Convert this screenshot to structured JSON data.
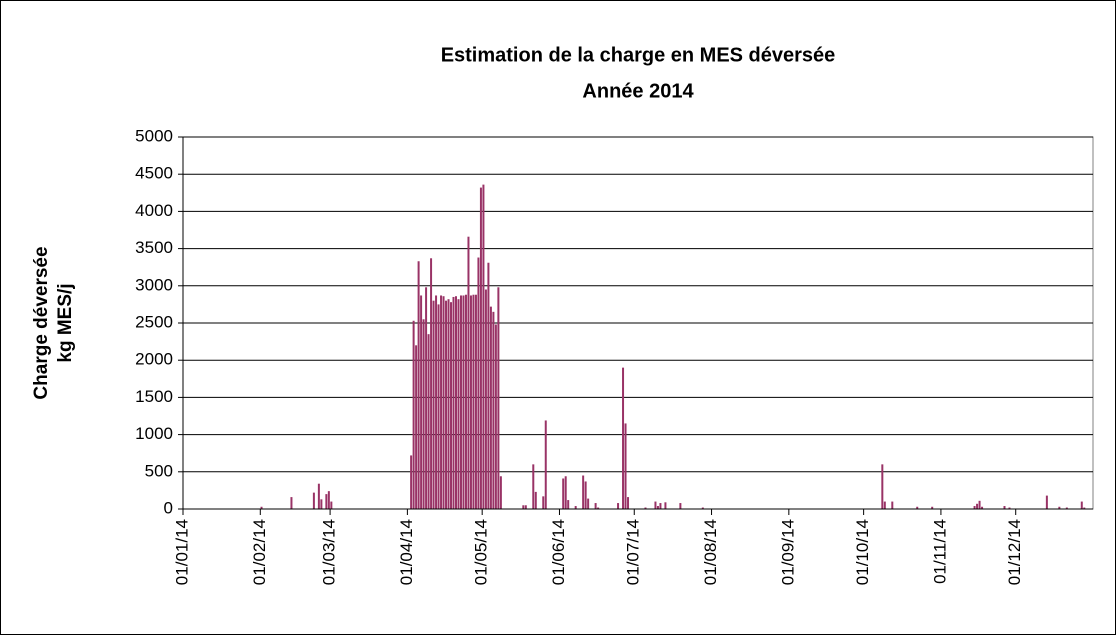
{
  "chart_data": {
    "type": "bar",
    "title": "Estimation de la charge en MES déversée",
    "subtitle": "Année 2014",
    "ylabel": [
      "Charge déversée",
      "kg MES/j"
    ],
    "color": "#993366",
    "ylim": [
      0,
      5000
    ],
    "yticks": [
      0,
      500,
      1000,
      1500,
      2000,
      2500,
      3000,
      3500,
      4000,
      4500,
      5000
    ],
    "grid": true,
    "categories": [
      "01/01/14",
      null,
      null,
      null,
      null,
      null,
      null,
      null,
      null,
      null,
      null,
      null,
      null,
      null,
      null,
      null,
      null,
      null,
      null,
      null,
      null,
      null,
      null,
      null,
      null,
      null,
      null,
      null,
      null,
      null,
      null,
      "01/02/14",
      null,
      null,
      null,
      null,
      null,
      null,
      null,
      null,
      null,
      null,
      null,
      null,
      null,
      null,
      null,
      null,
      null,
      null,
      null,
      null,
      null,
      null,
      null,
      null,
      null,
      null,
      null,
      "01/03/14",
      null,
      null,
      null,
      null,
      null,
      null,
      null,
      null,
      null,
      null,
      null,
      null,
      null,
      null,
      null,
      null,
      null,
      null,
      null,
      null,
      null,
      null,
      null,
      null,
      null,
      null,
      null,
      null,
      null,
      null,
      "01/04/14",
      null,
      null,
      null,
      null,
      null,
      null,
      null,
      null,
      null,
      null,
      null,
      null,
      null,
      null,
      null,
      null,
      null,
      null,
      null,
      null,
      null,
      null,
      null,
      null,
      null,
      null,
      null,
      null,
      null,
      "01/05/14",
      null,
      null,
      null,
      null,
      null,
      null,
      null,
      null,
      null,
      null,
      null,
      null,
      null,
      null,
      null,
      null,
      null,
      null,
      null,
      null,
      null,
      null,
      null,
      null,
      null,
      null,
      null,
      null,
      null,
      null,
      "01/06/14",
      null,
      null,
      null,
      null,
      null,
      null,
      null,
      null,
      null,
      null,
      null,
      null,
      null,
      null,
      null,
      null,
      null,
      null,
      null,
      null,
      null,
      null,
      null,
      null,
      null,
      null,
      null,
      null,
      null,
      "01/07/14",
      null,
      null,
      null,
      null,
      null,
      null,
      null,
      null,
      null,
      null,
      null,
      null,
      null,
      null,
      null,
      null,
      null,
      null,
      null,
      null,
      null,
      null,
      null,
      null,
      null,
      null,
      null,
      null,
      null,
      null,
      "01/08/14",
      null,
      null,
      null,
      null,
      null,
      null,
      null,
      null,
      null,
      null,
      null,
      null,
      null,
      null,
      null,
      null,
      null,
      null,
      null,
      null,
      null,
      null,
      null,
      null,
      null,
      null,
      null,
      null,
      null,
      null,
      "01/09/14",
      null,
      null,
      null,
      null,
      null,
      null,
      null,
      null,
      null,
      null,
      null,
      null,
      null,
      null,
      null,
      null,
      null,
      null,
      null,
      null,
      null,
      null,
      null,
      null,
      null,
      null,
      null,
      null,
      null,
      "01/10/14",
      null,
      null,
      null,
      null,
      null,
      null,
      null,
      null,
      null,
      null,
      null,
      null,
      null,
      null,
      null,
      null,
      null,
      null,
      null,
      null,
      null,
      null,
      null,
      null,
      null,
      null,
      null,
      null,
      null,
      null,
      "01/11/14",
      null,
      null,
      null,
      null,
      null,
      null,
      null,
      null,
      null,
      null,
      null,
      null,
      null,
      null,
      null,
      null,
      null,
      null,
      null,
      null,
      null,
      null,
      null,
      null,
      null,
      null,
      null,
      null,
      null,
      "01/12/14",
      null,
      null,
      null,
      null,
      null,
      null,
      null,
      null,
      null,
      null,
      null,
      null,
      null,
      null,
      null,
      null,
      null,
      null,
      null,
      null,
      null,
      null,
      null,
      null,
      null,
      null,
      null,
      null,
      null,
      null
    ],
    "values": [
      0,
      0,
      0,
      0,
      0,
      0,
      0,
      0,
      0,
      0,
      0,
      0,
      0,
      0,
      0,
      0,
      0,
      0,
      0,
      0,
      0,
      0,
      0,
      0,
      0,
      0,
      0,
      0,
      0,
      0,
      0,
      30,
      0,
      0,
      0,
      0,
      0,
      0,
      0,
      0,
      0,
      0,
      0,
      160,
      0,
      0,
      0,
      0,
      0,
      0,
      0,
      0,
      220,
      0,
      340,
      130,
      0,
      200,
      240,
      100,
      0,
      0,
      0,
      0,
      0,
      0,
      0,
      0,
      0,
      0,
      0,
      0,
      0,
      0,
      0,
      0,
      0,
      0,
      0,
      0,
      0,
      0,
      0,
      0,
      0,
      0,
      0,
      0,
      0,
      0,
      0,
      720,
      2530,
      2200,
      3330,
      2870,
      2550,
      2980,
      2350,
      3370,
      2800,
      2870,
      2750,
      2870,
      2860,
      2800,
      2820,
      2780,
      2850,
      2860,
      2820,
      2870,
      2870,
      2880,
      3660,
      2870,
      2880,
      2880,
      3380,
      4320,
      4360,
      2950,
      3310,
      2720,
      2650,
      2480,
      2980,
      440,
      0,
      0,
      0,
      0,
      0,
      0,
      0,
      0,
      50,
      50,
      0,
      0,
      600,
      230,
      0,
      0,
      170,
      1190,
      0,
      0,
      0,
      0,
      0,
      0,
      410,
      440,
      120,
      0,
      0,
      40,
      0,
      0,
      450,
      370,
      140,
      0,
      0,
      80,
      20,
      0,
      0,
      0,
      0,
      0,
      0,
      0,
      80,
      0,
      1900,
      1150,
      160,
      0,
      0,
      0,
      0,
      0,
      0,
      20,
      0,
      0,
      0,
      100,
      40,
      80,
      0,
      90,
      0,
      0,
      0,
      0,
      0,
      80,
      0,
      0,
      0,
      0,
      0,
      0,
      0,
      0,
      20,
      0,
      0,
      0,
      0,
      0,
      0,
      0,
      0,
      0,
      0,
      0,
      0,
      0,
      0,
      0,
      0,
      0,
      0,
      0,
      0,
      0,
      0,
      0,
      0,
      0,
      0,
      0,
      0,
      0,
      0,
      0,
      0,
      0,
      0,
      0,
      0,
      0,
      0,
      0,
      0,
      0,
      0,
      0,
      0,
      0,
      0,
      0,
      0,
      0,
      0,
      0,
      0,
      0,
      0,
      0,
      0,
      0,
      0,
      0,
      0,
      0,
      0,
      0,
      0,
      0,
      0,
      0,
      0,
      0,
      0,
      0,
      600,
      100,
      0,
      0,
      100,
      0,
      0,
      0,
      0,
      0,
      0,
      0,
      0,
      0,
      30,
      0,
      0,
      0,
      0,
      0,
      30,
      0,
      0,
      0,
      0,
      0,
      0,
      0,
      0,
      0,
      0,
      0,
      0,
      0,
      0,
      0,
      0,
      40,
      70,
      110,
      30,
      0,
      0,
      0,
      0,
      0,
      0,
      0,
      0,
      40,
      0,
      20,
      0,
      0,
      0,
      0,
      0,
      0,
      0,
      0,
      0,
      0,
      0,
      0,
      0,
      0,
      180,
      0,
      0,
      0,
      0,
      30,
      0,
      0,
      20,
      0,
      0,
      0,
      0,
      0,
      100,
      20,
      0,
      0,
      0
    ]
  }
}
